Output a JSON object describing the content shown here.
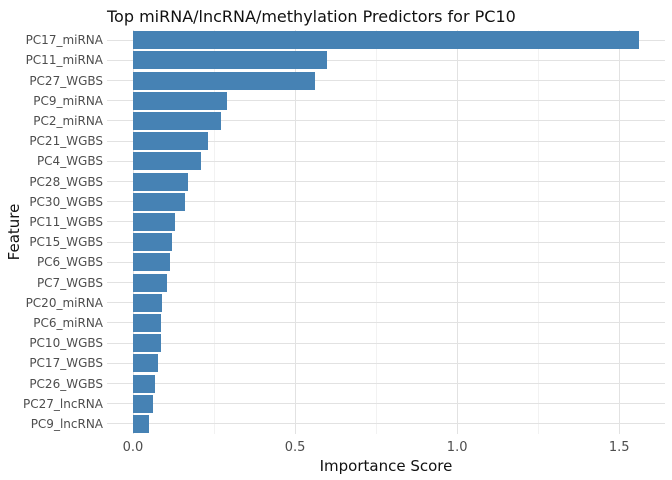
{
  "chart_data": {
    "type": "bar",
    "orientation": "horizontal",
    "title": "Top miRNA/lncRNA/methylation Predictors for PC10",
    "xlabel": "Importance Score",
    "ylabel": "Feature",
    "categories": [
      "PC17_miRNA",
      "PC11_miRNA",
      "PC27_WGBS",
      "PC9_miRNA",
      "PC2_miRNA",
      "PC21_WGBS",
      "PC4_WGBS",
      "PC28_WGBS",
      "PC30_WGBS",
      "PC11_WGBS",
      "PC15_WGBS",
      "PC6_WGBS",
      "PC7_WGBS",
      "PC20_miRNA",
      "PC6_miRNA",
      "PC10_WGBS",
      "PC17_WGBS",
      "PC26_WGBS",
      "PC27_lncRNA",
      "PC9_lncRNA"
    ],
    "values": [
      1.56,
      0.6,
      0.56,
      0.29,
      0.27,
      0.23,
      0.21,
      0.17,
      0.16,
      0.13,
      0.12,
      0.114,
      0.105,
      0.088,
      0.086,
      0.085,
      0.077,
      0.067,
      0.063,
      0.05
    ],
    "xlim": [
      0,
      1.64
    ],
    "x_ticks": [
      0.0,
      0.5,
      1.0,
      1.5
    ],
    "x_tick_labels": [
      "0.0",
      "0.5",
      "1.0",
      "1.5"
    ],
    "x_grid_minor": [
      0.25,
      0.75,
      1.25
    ],
    "grid": true,
    "legend": "none",
    "bar_color": "#4682B4",
    "grid_major_color": "#e2e2e2",
    "grid_minor_color": "#f2f2f2"
  }
}
